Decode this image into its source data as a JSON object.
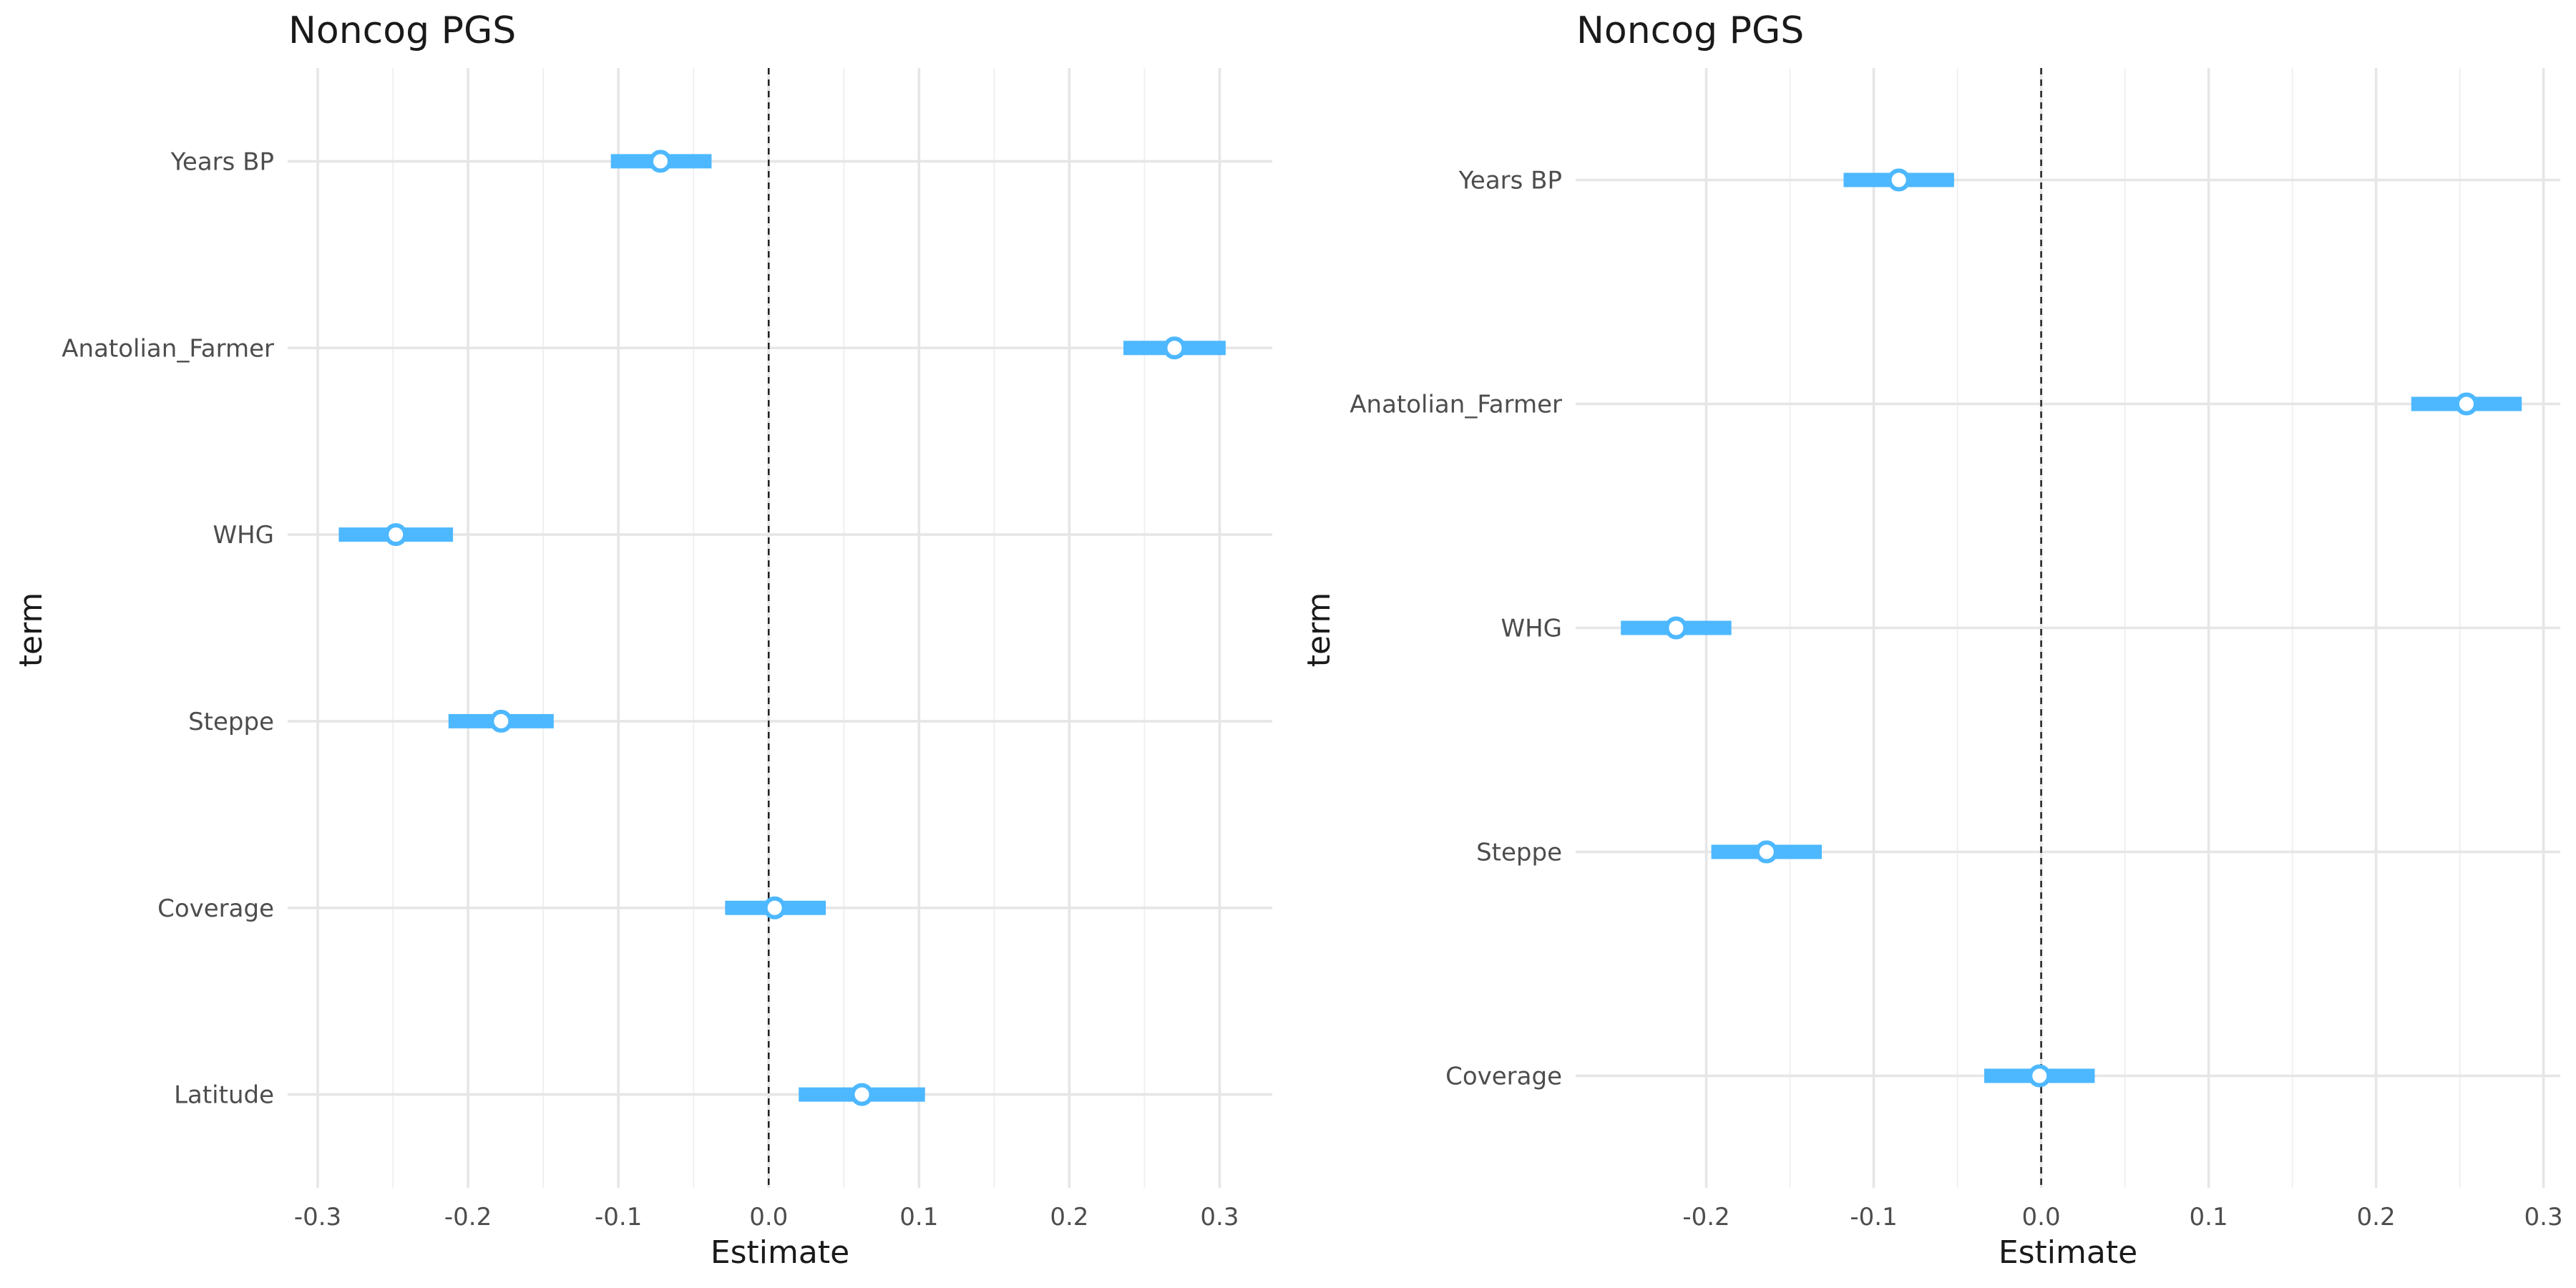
{
  "colors": {
    "series": "#4db8ff",
    "point_fill": "#ffffff",
    "grid": "#e6e6e6",
    "zero_line": "#222222"
  },
  "chart_data": [
    {
      "type": "coefficient-plot",
      "title": "Noncog PGS",
      "xlabel": "Estimate",
      "ylabel": "term",
      "xlim": [
        -0.32,
        0.335
      ],
      "x_ticks": [
        -0.3,
        -0.2,
        -0.1,
        0.0,
        0.1,
        0.2,
        0.3
      ],
      "x_tick_labels": [
        "-0.3",
        "-0.2",
        "-0.1",
        "0.0",
        "0.1",
        "0.2",
        "0.3"
      ],
      "reference_line": 0,
      "grid": true,
      "terms": [
        "Years BP",
        "Anatolian_Farmer",
        "WHG",
        "Steppe",
        "Coverage",
        "Latitude"
      ],
      "estimates": [
        -0.072,
        0.27,
        -0.248,
        -0.178,
        0.004,
        0.062
      ],
      "ci_low": [
        -0.105,
        0.236,
        -0.286,
        -0.213,
        -0.029,
        0.02
      ],
      "ci_high": [
        -0.038,
        0.304,
        -0.21,
        -0.143,
        0.038,
        0.104
      ]
    },
    {
      "type": "coefficient-plot",
      "title": "Noncog PGS",
      "xlabel": "Estimate",
      "ylabel": "term",
      "xlim": [
        -0.278,
        0.31
      ],
      "x_ticks": [
        -0.2,
        -0.1,
        0.0,
        0.1,
        0.2,
        0.3
      ],
      "x_tick_labels": [
        "-0.2",
        "-0.1",
        "0.0",
        "0.1",
        "0.2",
        "0.3"
      ],
      "reference_line": 0,
      "grid": true,
      "terms": [
        "Years BP",
        "Anatolian_Farmer",
        "WHG",
        "Steppe",
        "Coverage"
      ],
      "estimates": [
        -0.085,
        0.254,
        -0.218,
        -0.164,
        -0.001
      ],
      "ci_low": [
        -0.118,
        0.221,
        -0.251,
        -0.197,
        -0.034
      ],
      "ci_high": [
        -0.052,
        0.287,
        -0.185,
        -0.131,
        0.032
      ]
    }
  ]
}
